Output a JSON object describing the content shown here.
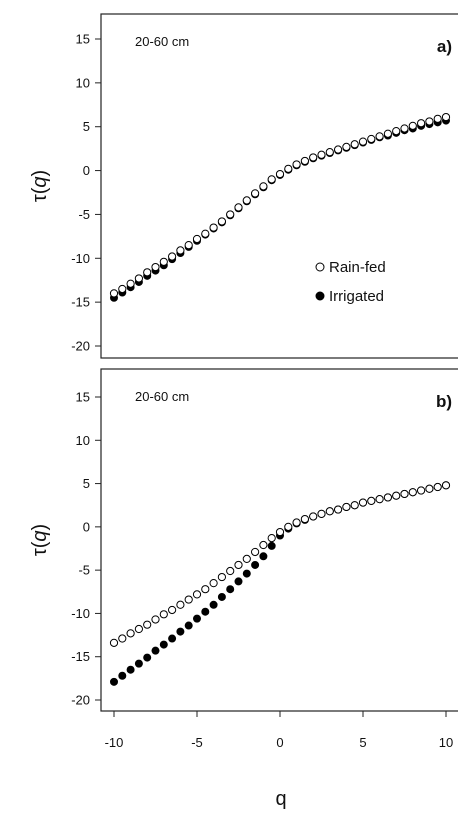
{
  "chart_data": [
    {
      "type": "scatter",
      "panel_label": "a)",
      "annotation": "20-60 cm",
      "ylabel": "τ(q)",
      "xlim": [
        -10,
        10
      ],
      "ylim": [
        -21,
        16
      ],
      "yticks": [
        -20,
        -15,
        -10,
        -5,
        0,
        5,
        10,
        15
      ],
      "legend": "lower-right",
      "series": [
        {
          "name": "Rain-fed",
          "marker": "open-circle",
          "x": [
            -10,
            -9.5,
            -9,
            -8.5,
            -8,
            -7.5,
            -7,
            -6.5,
            -6,
            -5.5,
            -5,
            -4.5,
            -4,
            -3.5,
            -3,
            -2.5,
            -2,
            -1.5,
            -1,
            -0.5,
            0,
            0.5,
            1,
            1.5,
            2,
            2.5,
            3,
            3.5,
            4,
            4.5,
            5,
            5.5,
            6,
            6.5,
            7,
            7.5,
            8,
            8.5,
            9,
            9.5,
            10
          ],
          "y": [
            -14.0,
            -13.5,
            -12.9,
            -12.3,
            -11.6,
            -11.0,
            -10.4,
            -9.8,
            -9.1,
            -8.5,
            -7.8,
            -7.2,
            -6.5,
            -5.8,
            -5.0,
            -4.2,
            -3.4,
            -2.6,
            -1.8,
            -1.0,
            -0.4,
            0.2,
            0.7,
            1.1,
            1.5,
            1.8,
            2.1,
            2.4,
            2.7,
            3.0,
            3.3,
            3.6,
            3.9,
            4.2,
            4.5,
            4.8,
            5.1,
            5.4,
            5.6,
            5.9,
            6.1
          ]
        },
        {
          "name": "Irrigated",
          "marker": "filled-circle",
          "x": [
            -10,
            -9.5,
            -9,
            -8.5,
            -8,
            -7.5,
            -7,
            -6.5,
            -6,
            -5.5,
            -5,
            -4.5,
            -4,
            -3.5,
            -3,
            -2.5,
            -2,
            -1.5,
            -1,
            -0.5,
            0,
            0.5,
            1,
            1.5,
            2,
            2.5,
            3,
            3.5,
            4,
            4.5,
            5,
            5.5,
            6,
            6.5,
            7,
            7.5,
            8,
            8.5,
            9,
            9.5,
            10
          ],
          "y": [
            -14.5,
            -13.9,
            -13.3,
            -12.7,
            -12.0,
            -11.4,
            -10.8,
            -10.1,
            -9.4,
            -8.7,
            -8.0,
            -7.3,
            -6.6,
            -5.9,
            -5.1,
            -4.3,
            -3.5,
            -2.7,
            -1.9,
            -1.1,
            -0.5,
            0.1,
            0.6,
            1.0,
            1.4,
            1.7,
            2.0,
            2.3,
            2.6,
            2.9,
            3.2,
            3.5,
            3.8,
            4.0,
            4.3,
            4.6,
            4.8,
            5.1,
            5.3,
            5.5,
            5.7
          ]
        }
      ]
    },
    {
      "type": "scatter",
      "panel_label": "b)",
      "annotation": "20-60 cm",
      "ylabel": "τ(q)",
      "xlabel": "q",
      "xlim": [
        -10,
        10
      ],
      "ylim": [
        -21,
        16
      ],
      "xticks": [
        -10,
        -5,
        0,
        5,
        10
      ],
      "yticks": [
        -20,
        -15,
        -10,
        -5,
        0,
        5,
        10,
        15
      ],
      "series": [
        {
          "name": "Rain-fed",
          "marker": "open-circle",
          "x": [
            -10,
            -9.5,
            -9,
            -8.5,
            -8,
            -7.5,
            -7,
            -6.5,
            -6,
            -5.5,
            -5,
            -4.5,
            -4,
            -3.5,
            -3,
            -2.5,
            -2,
            -1.5,
            -1,
            -0.5,
            0,
            0.5,
            1,
            1.5,
            2,
            2.5,
            3,
            3.5,
            4,
            4.5,
            5,
            5.5,
            6,
            6.5,
            7,
            7.5,
            8,
            8.5,
            9,
            9.5,
            10
          ],
          "y": [
            -13.4,
            -12.9,
            -12.3,
            -11.8,
            -11.3,
            -10.7,
            -10.1,
            -9.6,
            -9.0,
            -8.4,
            -7.8,
            -7.2,
            -6.5,
            -5.8,
            -5.1,
            -4.4,
            -3.7,
            -2.9,
            -2.1,
            -1.3,
            -0.6,
            0.0,
            0.5,
            0.9,
            1.2,
            1.5,
            1.8,
            2.0,
            2.3,
            2.5,
            2.8,
            3.0,
            3.2,
            3.4,
            3.6,
            3.8,
            4.0,
            4.2,
            4.4,
            4.6,
            4.8
          ]
        },
        {
          "name": "Irrigated",
          "marker": "filled-circle",
          "x": [
            -10,
            -9.5,
            -9,
            -8.5,
            -8,
            -7.5,
            -7,
            -6.5,
            -6,
            -5.5,
            -5,
            -4.5,
            -4,
            -3.5,
            -3,
            -2.5,
            -2,
            -1.5,
            -1,
            -0.5,
            0,
            0.5,
            1,
            1.5,
            2,
            2.5,
            3,
            3.5,
            4,
            4.5,
            5,
            5.5,
            6,
            6.5,
            7,
            7.5,
            8,
            8.5,
            9,
            9.5,
            10
          ],
          "y": [
            -17.9,
            -17.2,
            -16.5,
            -15.8,
            -15.1,
            -14.3,
            -13.6,
            -12.9,
            -12.1,
            -11.4,
            -10.6,
            -9.8,
            -9.0,
            -8.1,
            -7.2,
            -6.3,
            -5.4,
            -4.4,
            -3.4,
            -2.2,
            -1.0,
            -0.2,
            0.4,
            0.8,
            1.2,
            1.5,
            1.8,
            2.0,
            2.3,
            2.5,
            2.8,
            3.0,
            3.2,
            3.4,
            3.6,
            3.8,
            4.0,
            4.2,
            4.4,
            4.6,
            4.8
          ]
        }
      ]
    }
  ]
}
